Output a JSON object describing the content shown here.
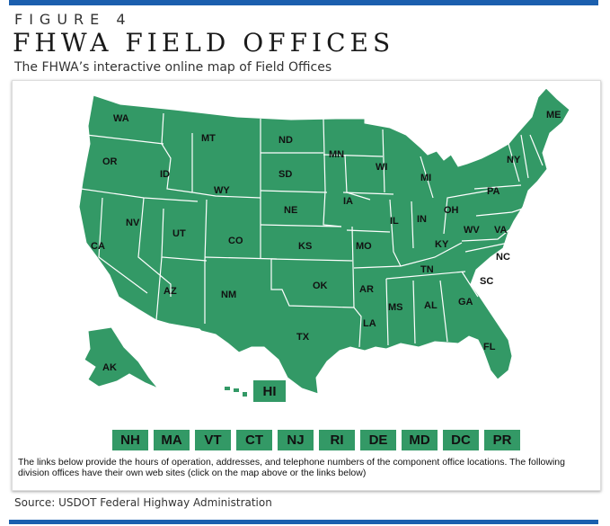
{
  "figure": {
    "label": "FIGURE 4",
    "title": "FHWA FIELD OFFICES",
    "subtitle": "The FHWA’s interactive online map of Field Offices",
    "source": "Source: USDOT Federal Highway Administration"
  },
  "map": {
    "fill_color": "#339966",
    "border_color": "#ffffff",
    "states": [
      "WA",
      "OR",
      "CA",
      "ID",
      "NV",
      "MT",
      "WY",
      "UT",
      "AZ",
      "CO",
      "NM",
      "ND",
      "SD",
      "NE",
      "KS",
      "OK",
      "TX",
      "MN",
      "IA",
      "MO",
      "AR",
      "LA",
      "WI",
      "IL",
      "MI",
      "IN",
      "OH",
      "KY",
      "TN",
      "MS",
      "AL",
      "GA",
      "FL",
      "SC",
      "NC",
      "VA",
      "WV",
      "PA",
      "NY",
      "ME",
      "AK"
    ],
    "hawaii_label": "HI",
    "small_state_buttons": [
      "NH",
      "MA",
      "VT",
      "CT",
      "NJ",
      "RI",
      "DE",
      "MD",
      "DC",
      "PR"
    ],
    "note": "The links below provide the hours of operation, addresses, and telephone numbers of the component office locations. The following division offices have their own web sites (click on the map above or the links below)"
  }
}
